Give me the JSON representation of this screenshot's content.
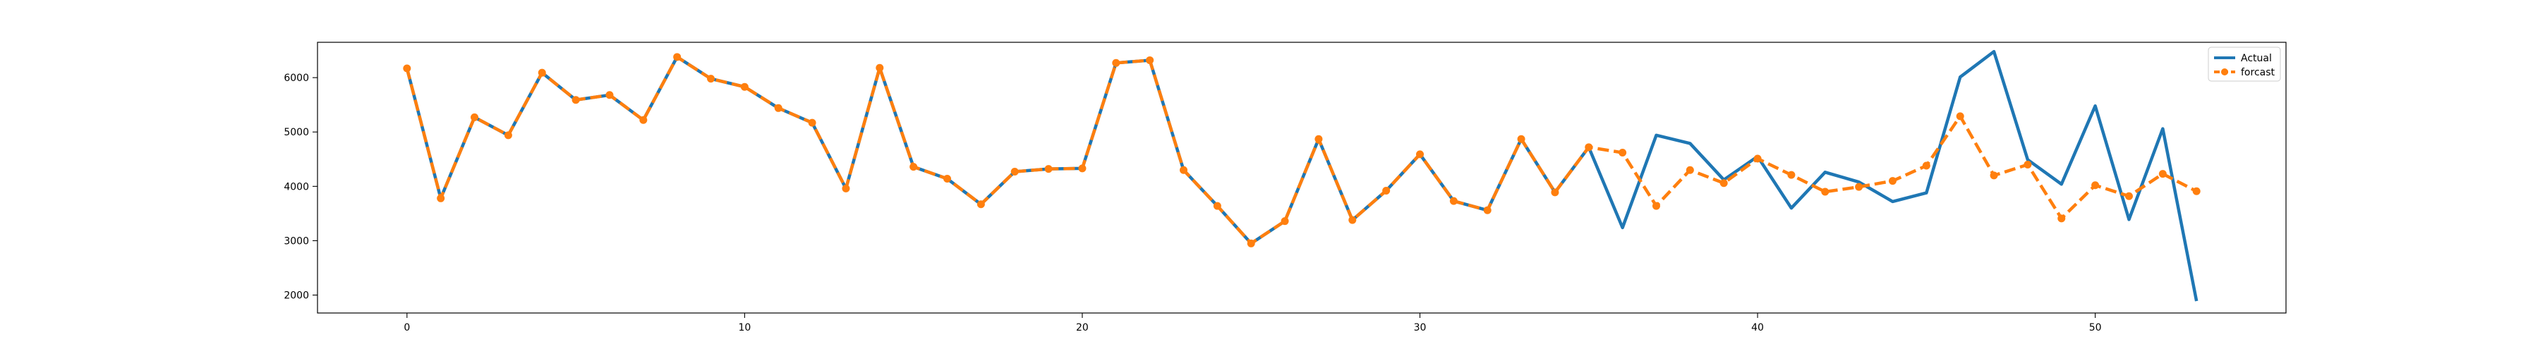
{
  "chart_data": {
    "type": "line",
    "title": "",
    "xlabel": "",
    "ylabel": "",
    "xlim": [
      -2.65,
      55.65
    ],
    "ylim": [
      1670,
      6650
    ],
    "xticks": [
      0,
      10,
      20,
      30,
      40,
      50
    ],
    "yticks": [
      2000,
      3000,
      4000,
      5000,
      6000
    ],
    "grid": false,
    "legend_position": "top-right",
    "x": [
      0,
      1,
      2,
      3,
      4,
      5,
      6,
      7,
      8,
      9,
      10,
      11,
      12,
      13,
      14,
      15,
      16,
      17,
      18,
      19,
      20,
      21,
      22,
      23,
      24,
      25,
      26,
      27,
      28,
      29,
      30,
      31,
      32,
      33,
      34,
      35,
      36,
      37,
      38,
      39,
      40,
      41,
      42,
      43,
      44,
      45,
      46,
      47,
      48,
      49,
      50,
      51,
      52,
      53
    ],
    "series": [
      {
        "name": "Actual",
        "color": "#1f77b4",
        "style": "solid",
        "values": [
          6170,
          3780,
          5270,
          4940,
          6090,
          5590,
          5680,
          5220,
          6380,
          5980,
          5830,
          5440,
          5170,
          3960,
          6180,
          4360,
          4140,
          3670,
          4270,
          4320,
          4330,
          6270,
          6320,
          4300,
          3640,
          2950,
          3360,
          4870,
          3380,
          3920,
          4590,
          3730,
          3560,
          4870,
          3890,
          4720,
          3240,
          4940,
          4790,
          4120,
          4550,
          3600,
          4260,
          4080,
          3720,
          3880,
          6010,
          6480,
          4490,
          4040,
          5480,
          3390,
          5060,
          1890
        ]
      },
      {
        "name": "forcast",
        "color": "#ff7f0e",
        "style": "dashed",
        "marker": "circle",
        "values": [
          6170,
          3780,
          5270,
          4940,
          6090,
          5590,
          5680,
          5220,
          6380,
          5980,
          5830,
          5440,
          5170,
          3960,
          6180,
          4360,
          4140,
          3670,
          4270,
          4320,
          4330,
          6270,
          6320,
          4300,
          3640,
          2950,
          3360,
          4870,
          3380,
          3920,
          4590,
          3730,
          3560,
          4870,
          3890,
          4720,
          4620,
          3640,
          4300,
          4060,
          4510,
          4210,
          3900,
          3990,
          4100,
          4380,
          5290,
          4200,
          4400,
          3410,
          4020,
          3820,
          4230,
          3910
        ]
      }
    ]
  }
}
